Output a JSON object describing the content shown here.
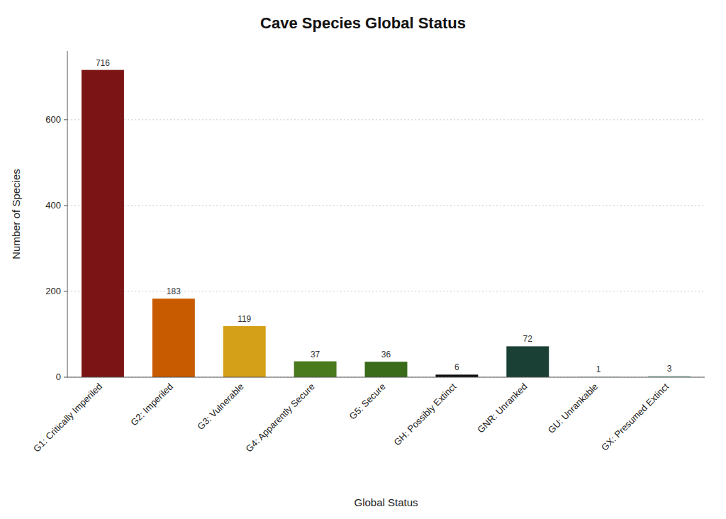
{
  "chart_data": {
    "type": "bar",
    "title": "Cave Species Global Status",
    "xlabel": "Global Status",
    "ylabel": "Number of Species",
    "categories": [
      "G1: Critically Imperiled",
      "G2: Imperiled",
      "G3: Vulnerable",
      "G4: Apparently Secure",
      "G5: Secure",
      "GH: Possibly Extinct",
      "GNR: Unranked",
      "GU: Unrankable",
      "GX: Presumed Extinct"
    ],
    "values": [
      716,
      183,
      119,
      37,
      36,
      6,
      72,
      1,
      3
    ],
    "colors": [
      "#7B1515",
      "#C85A00",
      "#D4A017",
      "#4A7A1E",
      "#3A6B1A",
      "#111111",
      "#1A4035",
      "#A8C8C0",
      "#A8C8C0"
    ],
    "ylim": [
      0,
      760
    ],
    "yticks": [
      0,
      200,
      400,
      600
    ],
    "grid": true,
    "data_labels": true
  }
}
